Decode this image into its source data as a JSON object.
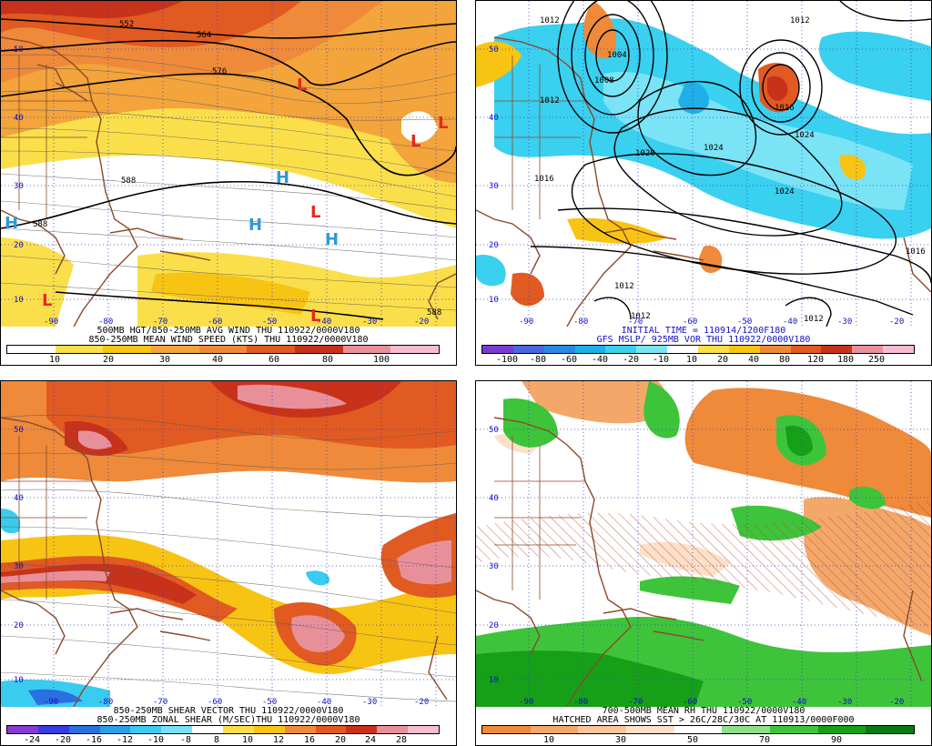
{
  "panels": [
    {
      "id": "tl",
      "caption_lines": [
        "500MB HGT/850-250MB AVG WIND THU 110922/0000V180",
        "850-250MB MEAN WIND SPEED (KTS) THU 110922/0000V180"
      ],
      "lat_labels": [
        "50",
        "40",
        "30",
        "20",
        "10"
      ],
      "lon_labels": [
        "-90",
        "-80",
        "-70",
        "-60",
        "-50",
        "-40",
        "-30",
        "-20"
      ],
      "contour_labels": [
        "552",
        "564",
        "576",
        "588",
        "588",
        "588"
      ],
      "symbols": [
        {
          "t": "L",
          "c": "#e8281e"
        },
        {
          "t": "L",
          "c": "#e8281e"
        },
        {
          "t": "L",
          "c": "#e8281e"
        },
        {
          "t": "L",
          "c": "#e8281e"
        },
        {
          "t": "L",
          "c": "#e8281e"
        },
        {
          "t": "L",
          "c": "#e8281e"
        },
        {
          "t": "H",
          "c": "#2a9bd8"
        },
        {
          "t": "H",
          "c": "#2a9bd8"
        },
        {
          "t": "H",
          "c": "#2a9bd8"
        },
        {
          "t": "H",
          "c": "#2a9bd8"
        }
      ],
      "colorbar": {
        "colors": [
          "#ffffff",
          "#fadf4a",
          "#f8c414",
          "#f3a43b",
          "#ee8a3a",
          "#e05a22",
          "#c8321a",
          "#e8909a",
          "#f7bcd0"
        ],
        "labels": [
          "10",
          "20",
          "30",
          "40",
          "60",
          "80",
          "100"
        ]
      }
    },
    {
      "id": "tr",
      "caption_lines": [
        "INITIAL TIME = 110914/1200F180",
        "GFS MSLP/ 925MB VOR THU 110922/0000V180"
      ],
      "lat_labels": [
        "50",
        "40",
        "30",
        "20",
        "10"
      ],
      "lon_labels": [
        "-90",
        "-80",
        "-70",
        "-60",
        "-50",
        "-40",
        "-30",
        "-20"
      ],
      "contour_labels": [
        "1012",
        "1012",
        "1004",
        "1008",
        "1012",
        "1020",
        "1024",
        "1016",
        "1024",
        "1016",
        "1024",
        "1012",
        "1012",
        "1012",
        "1016"
      ],
      "colorbar": {
        "colors": [
          "#7a3cd0",
          "#4a66e0",
          "#2a8ae0",
          "#1eaee8",
          "#3ad0f0",
          "#7ae4f6",
          "#ffffff",
          "#fadf4a",
          "#f8c414",
          "#ee8a3a",
          "#e05a22",
          "#c8321a",
          "#e8909a",
          "#f7bcd0"
        ],
        "labels": [
          "-100",
          "-80",
          "-60",
          "-40",
          "-20",
          "-10",
          "10",
          "20",
          "40",
          "80",
          "120",
          "180",
          "250"
        ]
      }
    },
    {
      "id": "bl",
      "caption_lines": [
        "850-250MB SHEAR VECTOR THU 110922/0000V180",
        "850-250MB ZONAL SHEAR (M/SEC)THU 110922/0000V180"
      ],
      "lat_labels": [
        "50",
        "40",
        "30",
        "20",
        "10"
      ],
      "lon_labels": [
        "-90",
        "-80",
        "-70",
        "-60",
        "-50",
        "-40",
        "-30",
        "-20"
      ],
      "colorbar": {
        "colors": [
          "#8a3ad0",
          "#3a3ae0",
          "#2a70e0",
          "#2aa0e8",
          "#3acbf0",
          "#7ae0f6",
          "#ffffff",
          "#fadf4a",
          "#f8c414",
          "#ee8a3a",
          "#e05a22",
          "#c8321a",
          "#e8909a",
          "#f7bcd0"
        ],
        "labels": [
          "-24",
          "-20",
          "-16",
          "-12",
          "-10",
          "-8",
          "8",
          "10",
          "12",
          "16",
          "20",
          "24",
          "28"
        ]
      }
    },
    {
      "id": "br",
      "caption_lines": [
        "700-500MB MEAN RH THU 110922/0000V180",
        "HATCHED AREA SHOWS SST > 26C/28C/30C AT 110913/0000F000"
      ],
      "lat_labels": [
        "50",
        "40",
        "30",
        "20",
        "10"
      ],
      "lon_labels": [
        "-90",
        "-80",
        "-70",
        "-60",
        "-50",
        "-40",
        "-30",
        "-20"
      ],
      "colorbar": {
        "colors": [
          "#ee8a3a",
          "#f3a86a",
          "#f8c49a",
          "#fde0c8",
          "#ffffff",
          "#8ee08a",
          "#3ec43a",
          "#16a018",
          "#0a7a12"
        ],
        "labels": [
          "10",
          "30",
          "50",
          "70",
          "90"
        ]
      }
    }
  ]
}
